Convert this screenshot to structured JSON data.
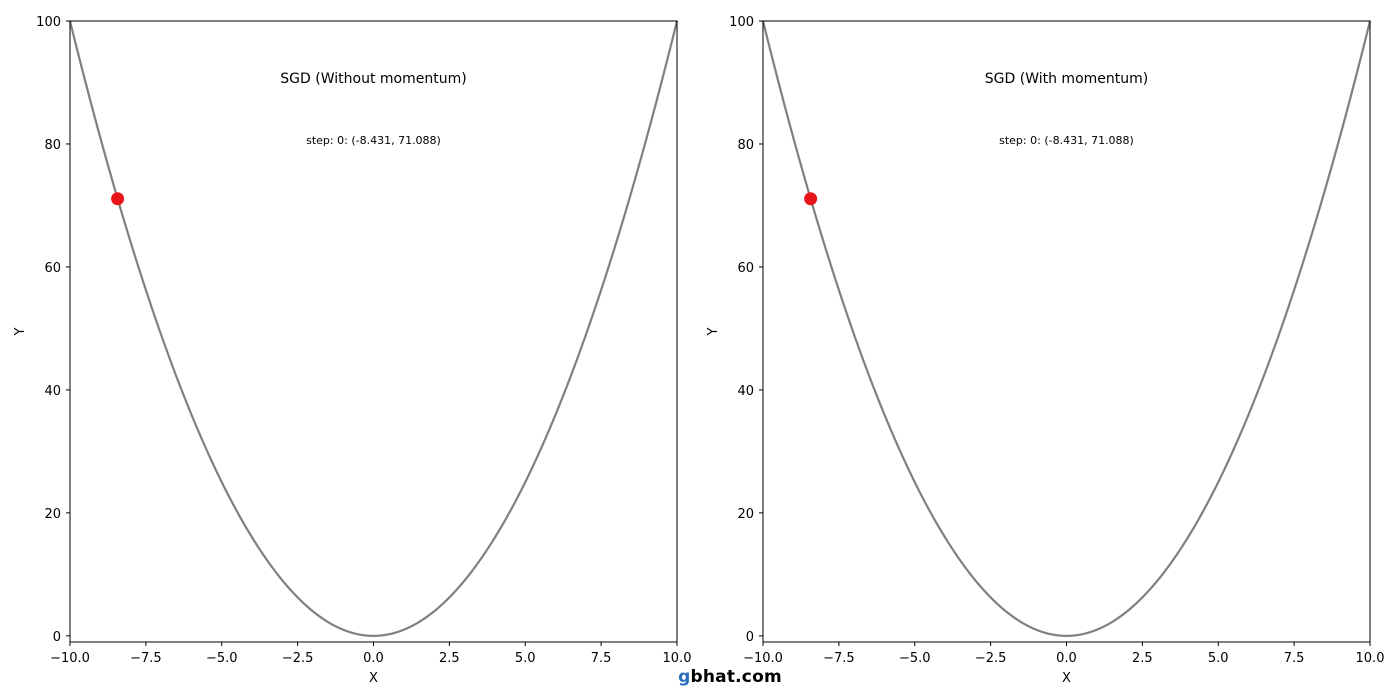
{
  "chart_data": [
    {
      "type": "line",
      "title": "SGD (Without momentum)",
      "annotation": "step: 0: (-8.431, 71.088)",
      "xlabel": "X",
      "ylabel": "Y",
      "xlim": [
        -10,
        10
      ],
      "ylim": [
        -1,
        100
      ],
      "xticks": [
        "−10.0",
        "−7.5",
        "−5.0",
        "−2.5",
        "0.0",
        "2.5",
        "5.0",
        "7.5",
        "10.0"
      ],
      "yticks": [
        "0",
        "20",
        "40",
        "60",
        "80",
        "100"
      ],
      "curve": "y = x^2",
      "curve_color": "#808080",
      "point": {
        "x": -8.431,
        "y": 71.088,
        "color": "#e8161a"
      }
    },
    {
      "type": "line",
      "title": "SGD (With momentum)",
      "annotation": "step: 0: (-8.431, 71.088)",
      "xlabel": "X",
      "ylabel": "Y",
      "xlim": [
        -10,
        10
      ],
      "ylim": [
        -1,
        100
      ],
      "xticks": [
        "−10.0",
        "−7.5",
        "−5.0",
        "−2.5",
        "0.0",
        "2.5",
        "5.0",
        "7.5",
        "10.0"
      ],
      "yticks": [
        "0",
        "20",
        "40",
        "60",
        "80",
        "100"
      ],
      "curve": "y = x^2",
      "curve_color": "#808080",
      "point": {
        "x": -8.431,
        "y": 71.088,
        "color": "#e8161a"
      }
    }
  ],
  "watermark": {
    "prefix": "g",
    "rest": "bhat.com"
  }
}
